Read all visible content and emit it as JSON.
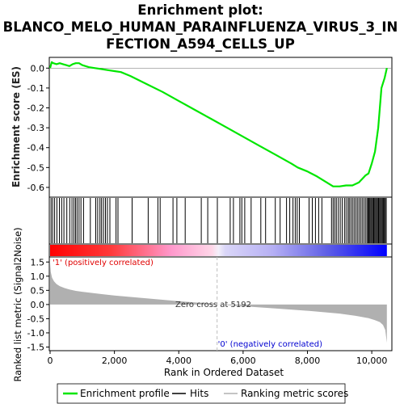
{
  "title_line1": "Enrichment plot:",
  "title_line2": "BLANCO_MELO_HUMAN_PARAINFLUENZA_VIRUS_3_IN",
  "title_line3": "FECTION_A594_CELLS_UP",
  "colors": {
    "enrichment": "#00e600",
    "hits": "#000000",
    "positive": "#ff0000",
    "negative": "#0000ff",
    "metric_fill": "#b0b0b0",
    "zero_line": "#c0c0c0"
  },
  "chart_data": [
    {
      "type": "line",
      "name": "enrichment-profile",
      "ylabel": "Enrichment score (ES)",
      "xlim": [
        0,
        10600
      ],
      "ylim": [
        -0.645,
        0.05
      ],
      "yticks": [
        0.0,
        -0.1,
        -0.2,
        -0.3,
        -0.4,
        -0.5,
        -0.6
      ],
      "ytick_labels": [
        "0.0",
        "-0.1",
        "-0.2",
        "-0.3",
        "-0.4",
        "-0.5",
        "-0.6"
      ],
      "grid": false,
      "x": [
        0,
        50,
        100,
        200,
        300,
        400,
        500,
        600,
        700,
        800,
        900,
        1000,
        1200,
        1400,
        1600,
        1800,
        2000,
        2200,
        2500,
        3000,
        3500,
        4000,
        4500,
        5000,
        5500,
        6000,
        6500,
        7000,
        7500,
        7700,
        8000,
        8300,
        8600,
        8800,
        9000,
        9200,
        9400,
        9600,
        9800,
        9900,
        10000,
        10100,
        10200,
        10300,
        10400,
        10470
      ],
      "y": [
        0.0,
        0.03,
        0.025,
        0.02,
        0.025,
        0.02,
        0.015,
        0.01,
        0.02,
        0.025,
        0.025,
        0.015,
        0.005,
        0.0,
        -0.005,
        -0.01,
        -0.015,
        -0.02,
        -0.04,
        -0.08,
        -0.12,
        -0.165,
        -0.21,
        -0.255,
        -0.3,
        -0.345,
        -0.39,
        -0.435,
        -0.48,
        -0.5,
        -0.52,
        -0.545,
        -0.575,
        -0.595,
        -0.595,
        -0.59,
        -0.59,
        -0.575,
        -0.54,
        -0.53,
        -0.48,
        -0.42,
        -0.3,
        -0.1,
        -0.05,
        0.0
      ]
    },
    {
      "type": "scatter",
      "name": "hits",
      "xlim": [
        0,
        10600
      ],
      "x": [
        30,
        80,
        140,
        210,
        290,
        360,
        430,
        520,
        610,
        680,
        740,
        790,
        840,
        900,
        960,
        1040,
        1250,
        1420,
        1480,
        1550,
        1600,
        1660,
        1720,
        1780,
        1860,
        2050,
        2110,
        2550,
        3050,
        3350,
        3420,
        3820,
        3940,
        4200,
        4700,
        4900,
        5200,
        5600,
        5700,
        5900,
        5960,
        6050,
        6250,
        6550,
        6700,
        7000,
        7150,
        7350,
        7450,
        7550,
        7620,
        7680,
        7750,
        8050,
        8150,
        8250,
        8350,
        8450,
        8750,
        8800,
        8850,
        8900,
        8960,
        9020,
        9080,
        9150,
        9200,
        9260,
        9300,
        9350,
        9400,
        9450,
        9500,
        9550,
        9600,
        9650,
        9700,
        9750,
        9800,
        9850,
        9880,
        9910,
        9940,
        9970,
        10000,
        10030,
        10060,
        10090,
        10120,
        10150,
        10180,
        10210,
        10240,
        10270,
        10300,
        10330,
        10360,
        10390,
        10420,
        10450
      ]
    },
    {
      "type": "area",
      "name": "ranking-metric",
      "xlabel": "Rank in Ordered Dataset",
      "ylabel": "Ranked list metric (Signal2Noise)",
      "xlim": [
        0,
        10600
      ],
      "ylim": [
        -1.6,
        1.65
      ],
      "xticks": [
        0,
        2000,
        4000,
        6000,
        8000,
        10000
      ],
      "xtick_labels": [
        "0",
        "2,000",
        "4,000",
        "6,000",
        "8,000",
        "10,000"
      ],
      "yticks": [
        1.5,
        1.0,
        0.5,
        0.0,
        -0.5,
        -1.0,
        -1.5
      ],
      "ytick_labels": [
        "1.5",
        "1.0",
        "0.5",
        "0.0",
        "-0.5",
        "-1.0",
        "-1.5"
      ],
      "x": [
        0,
        20,
        60,
        120,
        200,
        300,
        450,
        600,
        800,
        1000,
        1500,
        2000,
        3000,
        4000,
        5000,
        5192,
        6000,
        7000,
        8000,
        9000,
        9500,
        9900,
        10100,
        10250,
        10350,
        10420,
        10470
      ],
      "y": [
        1.45,
        1.15,
        0.95,
        0.82,
        0.72,
        0.65,
        0.58,
        0.53,
        0.48,
        0.45,
        0.38,
        0.32,
        0.22,
        0.12,
        0.03,
        0.0,
        -0.06,
        -0.14,
        -0.22,
        -0.32,
        -0.4,
        -0.48,
        -0.55,
        -0.62,
        -0.72,
        -0.9,
        -1.35
      ]
    }
  ],
  "annotations": {
    "positive_label": "'1' (positively correlated)",
    "negative_label": "'0' (negatively correlated)",
    "zero_cross_label": "Zero cross at 5192",
    "zero_cross": 5192
  },
  "legend": {
    "items": [
      {
        "label": "Enrichment profile"
      },
      {
        "label": "Hits"
      },
      {
        "label": "Ranking metric scores"
      }
    ]
  }
}
